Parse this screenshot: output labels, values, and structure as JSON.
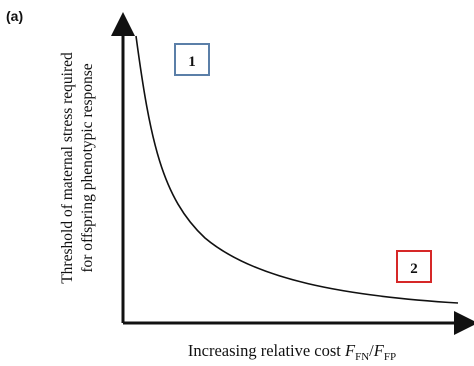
{
  "panel_label": "(a)",
  "y_label_line1": "Threshold of maternal stress required",
  "y_label_line2": "for offspring phenotypic response",
  "x_label_prefix": "Increasing relative cost ",
  "x_label_f1": "F",
  "x_label_sub1": "FN",
  "x_label_slash": "/",
  "x_label_f2": "F",
  "x_label_sub2": "FP",
  "box1": {
    "label": "1",
    "border_color": "#5b7fa8"
  },
  "box2": {
    "label": "2",
    "border_color": "#d62828"
  },
  "curve_color": "#111111"
}
